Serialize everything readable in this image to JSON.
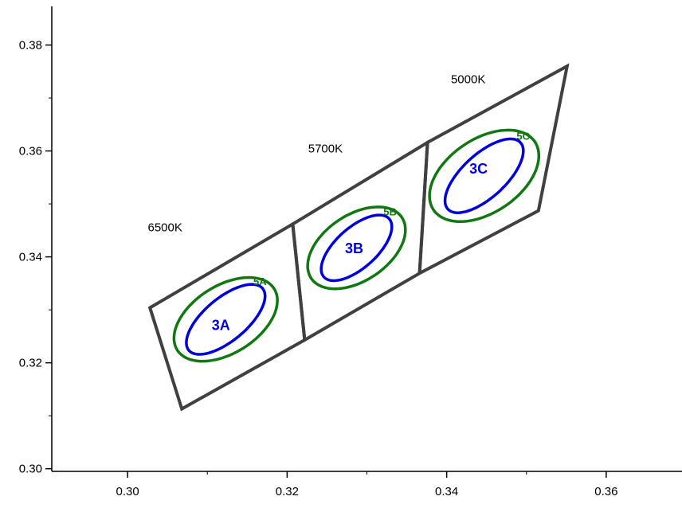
{
  "chart_data": {
    "type": "scatter",
    "title": "",
    "xlabel": "",
    "ylabel": "",
    "xlim": [
      0.2905,
      0.3695
    ],
    "ylim": [
      0.2995,
      0.3885
    ],
    "x_ticks": [
      0.3,
      0.32,
      0.34,
      0.36
    ],
    "x_tick_labels": [
      "0.30",
      "0.32",
      "0.34",
      "0.36"
    ],
    "y_ticks": [
      0.3,
      0.32,
      0.34,
      0.36,
      0.38
    ],
    "y_tick_labels": [
      "0.30",
      "0.32",
      "0.34",
      "0.36",
      "0.38"
    ],
    "grid": false,
    "colors": {
      "quad": "#404040",
      "step7": "#0000dd",
      "step5": "#117711"
    },
    "quadrangles": [
      {
        "label": "6500K",
        "label_pos": [
          0.3047,
          0.3448
        ],
        "vertices": [
          [
            0.3028,
            0.3304
          ],
          [
            0.3207,
            0.3462
          ],
          [
            0.3222,
            0.3243
          ],
          [
            0.3068,
            0.3113
          ]
        ]
      },
      {
        "label": "5700K",
        "label_pos": [
          0.3248,
          0.3597
        ],
        "vertices": [
          [
            0.3207,
            0.3462
          ],
          [
            0.3376,
            0.3616
          ],
          [
            0.3366,
            0.3369
          ],
          [
            0.3222,
            0.3243
          ]
        ]
      },
      {
        "label": "5000K",
        "label_pos": [
          0.3427,
          0.3728
        ],
        "vertices": [
          [
            0.3376,
            0.3616
          ],
          [
            0.3551,
            0.376
          ],
          [
            0.3515,
            0.3487
          ],
          [
            0.3366,
            0.3369
          ]
        ]
      }
    ],
    "ellipses": [
      {
        "group": "step7",
        "label": "3A",
        "center": [
          0.3123,
          0.3282
        ],
        "a": 0.0076,
        "b": 0.0032,
        "angle_deg": 57
      },
      {
        "group": "step5",
        "label": "5A",
        "center": [
          0.3123,
          0.3282
        ],
        "a": 0.0088,
        "b": 0.0052,
        "angle_deg": 57
      },
      {
        "group": "step7",
        "label": "3B",
        "center": [
          0.3287,
          0.3417
        ],
        "a": 0.007,
        "b": 0.003,
        "angle_deg": 59
      },
      {
        "group": "step5",
        "label": "5B",
        "center": [
          0.3287,
          0.3417
        ],
        "a": 0.0085,
        "b": 0.005,
        "angle_deg": 59
      },
      {
        "group": "step7",
        "label": "3C",
        "center": [
          0.3447,
          0.3553
        ],
        "a": 0.0079,
        "b": 0.0032,
        "angle_deg": 59
      },
      {
        "group": "step5",
        "label": "5C",
        "center": [
          0.3447,
          0.3553
        ],
        "a": 0.0095,
        "b": 0.0056,
        "angle_deg": 59
      }
    ],
    "ellipse_labels": [
      {
        "text": "3A",
        "group": "step7",
        "pos": [
          0.3117,
          0.3262
        ]
      },
      {
        "text": "5A",
        "group": "step5",
        "pos": [
          0.3166,
          0.3347
        ]
      },
      {
        "text": "3B",
        "group": "step7",
        "pos": [
          0.3284,
          0.3407
        ]
      },
      {
        "text": "5B",
        "group": "step5",
        "pos": [
          0.3329,
          0.3478
        ]
      },
      {
        "text": "3C",
        "group": "step7",
        "pos": [
          0.344,
          0.3557
        ]
      },
      {
        "text": "5C",
        "group": "step5",
        "pos": [
          0.3496,
          0.3621
        ]
      }
    ]
  }
}
